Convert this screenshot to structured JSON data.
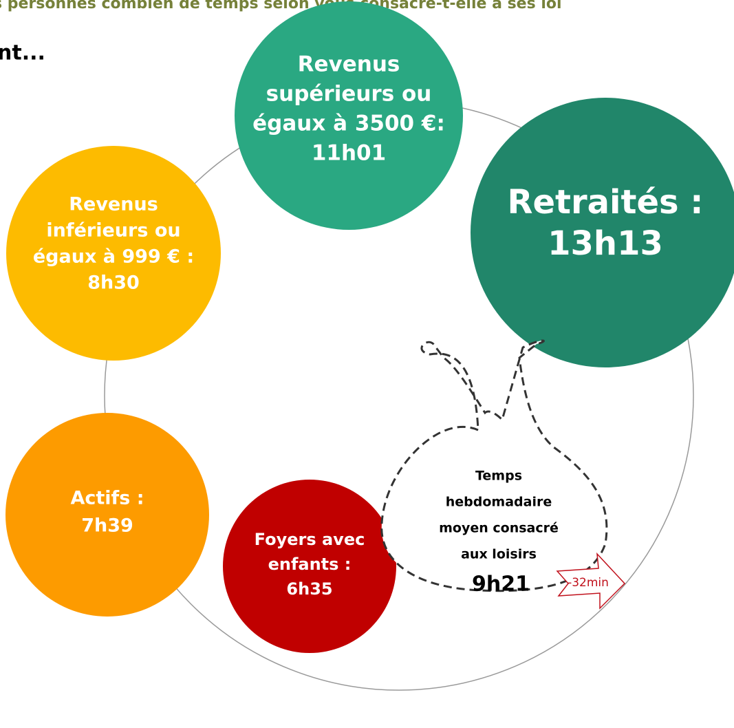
{
  "header": {
    "question": "s personnes combien de temps selon vous consacre-t-elle à ses loi",
    "subline": "nt..."
  },
  "bubbles": [
    {
      "lines": [
        "Revenus",
        "supérieurs ou",
        "égaux à 3500 €:",
        "11h01"
      ]
    },
    {
      "lines": [
        "Retraités :",
        "13h13"
      ]
    },
    {
      "lines": [
        "Revenus",
        "inférieurs ou",
        "égaux à 999 € :",
        "8h30"
      ]
    },
    {
      "lines": [
        "Actifs :",
        "7h39"
      ]
    },
    {
      "lines": [
        "Foyers avec",
        "enfants :",
        "6h35"
      ]
    }
  ],
  "bag": {
    "lines": [
      "Temps",
      "hebdomadaire",
      "moyen consacré",
      "aux loisirs"
    ],
    "value": "9h21",
    "change": "-32min"
  }
}
